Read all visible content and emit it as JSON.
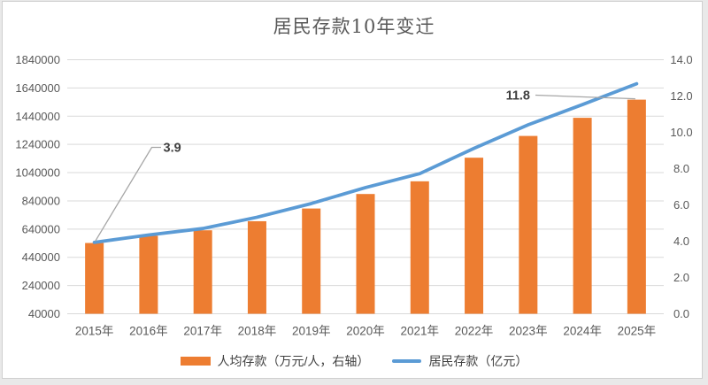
{
  "chart_data": {
    "type": "bar+line-combo",
    "title": "居民存款10年变迁",
    "categories": [
      "2015年",
      "2016年",
      "2017年",
      "2018年",
      "2019年",
      "2020年",
      "2021年",
      "2022年",
      "2023年",
      "2024年",
      "2025年"
    ],
    "series": [
      {
        "name": "人均存款（万元/人，右轴）",
        "type": "bar",
        "axis": "right",
        "color": "#ED7D31",
        "values": [
          3.9,
          4.3,
          4.6,
          5.1,
          5.8,
          6.6,
          7.3,
          8.6,
          9.8,
          10.8,
          11.8
        ]
      },
      {
        "name": "居民存款（亿元）",
        "type": "line",
        "axis": "left",
        "color": "#5B9BD5",
        "values": [
          546000,
          598000,
          644000,
          724000,
          821000,
          934000,
          1033000,
          1212000,
          1379000,
          1522000,
          1670000
        ]
      }
    ],
    "left_axis": {
      "min": 40000,
      "max": 1840000,
      "step": 200000,
      "ticks": [
        "40000",
        "240000",
        "440000",
        "640000",
        "840000",
        "1040000",
        "1240000",
        "1440000",
        "1640000",
        "1840000"
      ]
    },
    "right_axis": {
      "min": 0,
      "max": 14,
      "step": 2,
      "ticks": [
        "0.0",
        "2.0",
        "4.0",
        "6.0",
        "8.0",
        "10.0",
        "12.0",
        "14.0"
      ]
    },
    "annotations": [
      {
        "text": "3.9",
        "category": "2015年",
        "index": 0,
        "series": "人均存款（万元/人，右轴）"
      },
      {
        "text": "11.8",
        "category": "2025年",
        "index": 10,
        "series": "人均存款（万元/人，右轴）"
      }
    ],
    "grid": true,
    "legend_position": "bottom",
    "palette": {
      "grid": "#D9D9D9",
      "axis_text": "#595959",
      "title_text": "#595959",
      "annotation_text": "#3F3F3F",
      "leader_line": "#A6A6A6",
      "frame_border": "#CFCFCF",
      "chart_bg": "#FFFFFF",
      "page_bg": "#E9E9E9"
    }
  }
}
